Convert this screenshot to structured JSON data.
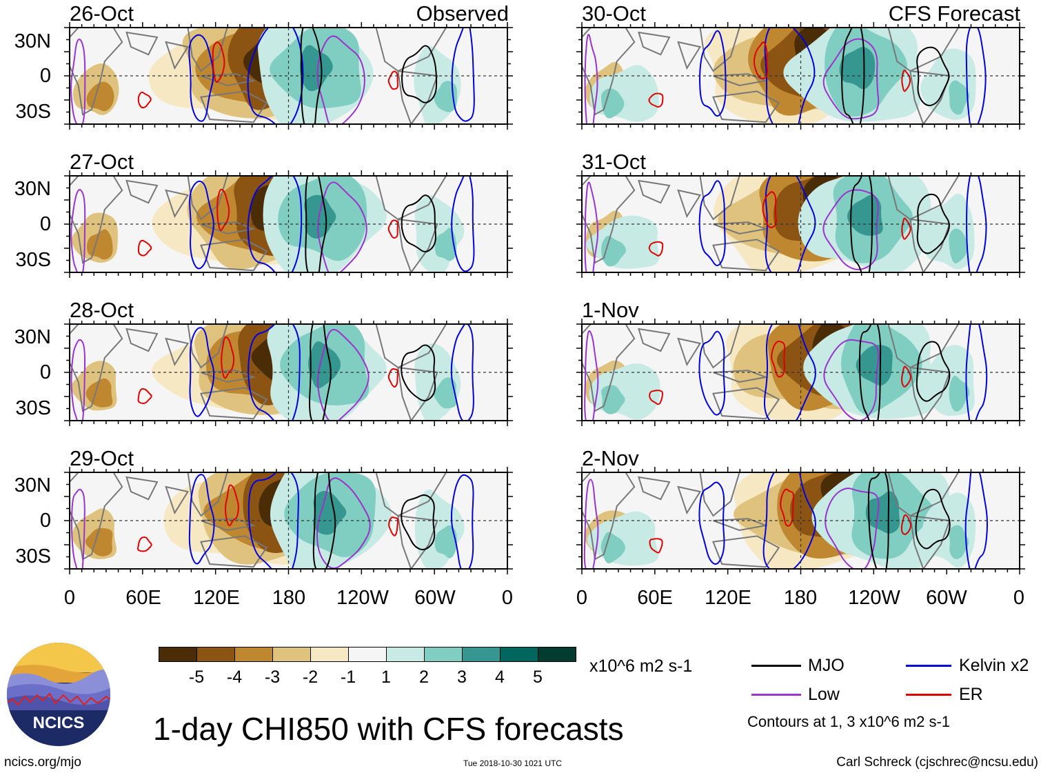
{
  "domain": "Map",
  "title": "1-day CHI850 with CFS forecasts",
  "colorbar": {
    "units": "x10^6 m2 s-1",
    "labels": [
      "-5",
      "-4",
      "-3",
      "-2",
      "-1",
      "1",
      "2",
      "3",
      "4",
      "5"
    ],
    "colors": [
      "#4a2c07",
      "#8c5413",
      "#bf872f",
      "#dfc27d",
      "#f6e8c3",
      "#f5f5f5",
      "#c7eae5",
      "#80cdc1",
      "#35978f",
      "#01665e",
      "#003c30"
    ]
  },
  "left_column": {
    "source": "Observed",
    "dates": [
      "26-Oct",
      "27-Oct",
      "28-Oct",
      "29-Oct"
    ]
  },
  "right_column": {
    "source": "CFS Forecast",
    "dates": [
      "30-Oct",
      "31-Oct",
      "1-Nov",
      "2-Nov"
    ]
  },
  "lat_labels": [
    "30N",
    "0",
    "30S"
  ],
  "lon_labels": [
    "0",
    "60E",
    "120E",
    "180",
    "120W",
    "60W",
    "0"
  ],
  "legend": {
    "items": [
      {
        "label": "MJO",
        "color": "#000000"
      },
      {
        "label": "Kelvin x2",
        "color": "#0000dd"
      },
      {
        "label": "Low",
        "color": "#9933cc"
      },
      {
        "label": "ER",
        "color": "#dd0000"
      }
    ],
    "note": "Contours at 1, 3 x10^6 m2 s-1"
  },
  "footer": {
    "site": "ncics.org/mjo",
    "timestamp": "Tue 2018-10-30 1021 UTC",
    "author": "Carl Schreck (cjschrec@ncsu.edu)",
    "logo_text": "NCICS"
  }
}
